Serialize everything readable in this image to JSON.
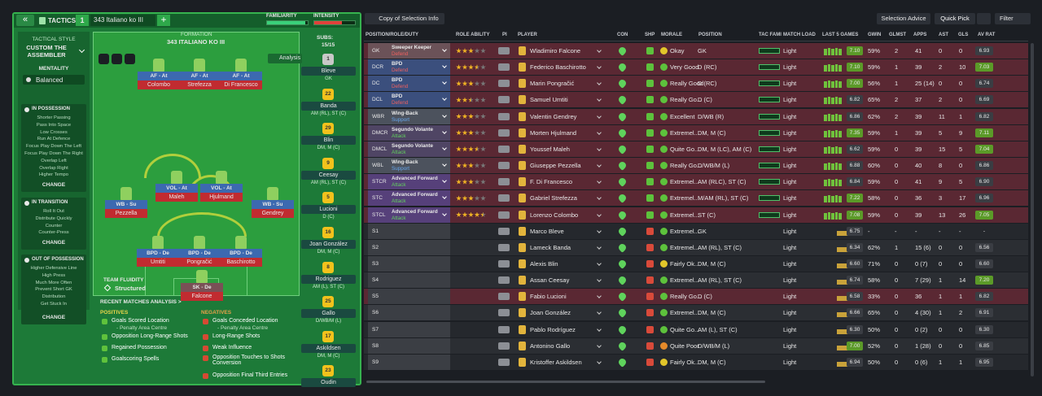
{
  "header": {
    "tactics_label": "TACTICS",
    "slot": "1",
    "tactic_name": "343 Italiano ko III",
    "familiarity_label": "FAMILIARITY",
    "familiarity_level": 93,
    "intensity_label": "INTENSITY",
    "intensity_level": 68
  },
  "sidebar": {
    "style_label": "TACTICAL STYLE",
    "style": "CUSTOM THE ASSEMBLER",
    "mentality_label": "MENTALITY",
    "mentality": "Balanced",
    "sections": [
      {
        "title": "IN POSSESSION",
        "items": [
          "Shorter Passing",
          "Pass Into Space",
          "Low Crosses",
          "Run At Defence",
          "Focus Play Down The Left",
          "Focus Play Down The Right",
          "Overlap Left",
          "Overlap Right",
          "Higher Tempo"
        ],
        "button": "CHANGE"
      },
      {
        "title": "IN TRANSITION",
        "items": [
          "Roll It Out",
          "Distribute Quickly",
          "Counter",
          "Counter-Press"
        ],
        "button": "CHANGE"
      },
      {
        "title": "OUT OF POSSESSION",
        "items": [
          "Higher Defensive Line",
          "High Press",
          "Much More Often",
          "Prevent Short GK",
          "Distribution",
          "Get Stuck In"
        ],
        "button": "CHANGE"
      }
    ]
  },
  "formation": {
    "label": "FORMATION",
    "name": "343 ITALIANO KO III",
    "subs_label": "SUBS:",
    "subs": "15/15",
    "analysis": "Analysis",
    "fluidity_label": "TEAM FLUIDITY",
    "fluidity": "Structured",
    "players": [
      {
        "role": "AF - At",
        "name": "Colombo"
      },
      {
        "role": "AF - At",
        "name": "Strefezza"
      },
      {
        "role": "AF - At",
        "name": "Di Francesco"
      },
      {
        "role": "WB - Su",
        "name": "Pezzella"
      },
      {
        "role": "VOL - At",
        "name": "Maleh"
      },
      {
        "role": "VOL - At",
        "name": "Hjulmand"
      },
      {
        "role": "WB - Su",
        "name": "Gendrey"
      },
      {
        "role": "BPD - De",
        "name": "Umtiti"
      },
      {
        "role": "BPD - De",
        "name": "Pongračić"
      },
      {
        "role": "BPD - De",
        "name": "Baschirotto"
      },
      {
        "role": "SK - De",
        "name": "Falcone"
      }
    ],
    "subs_list": [
      {
        "number": "1",
        "name": "Bleve",
        "position": "GK"
      },
      {
        "number": "22",
        "name": "Banda",
        "position": "AM (RL), ST (C)"
      },
      {
        "number": "29",
        "name": "Blin",
        "position": "DM, M (C)"
      },
      {
        "number": "9",
        "name": "Ceesay",
        "position": "AM (RL), ST (C)"
      },
      {
        "number": "5",
        "name": "Lucioni",
        "position": "D (C)"
      },
      {
        "number": "16",
        "name": "Joan González",
        "position": "DM, M (C)"
      },
      {
        "number": "8",
        "name": "Rodriguez",
        "position": "AM (L), ST (C)"
      },
      {
        "number": "25",
        "name": "Gallo",
        "position": "D/WB/M (L)"
      },
      {
        "number": "17",
        "name": "Askildsen",
        "position": "DM, M (C)"
      },
      {
        "number": "23",
        "name": "Oudin"
      }
    ]
  },
  "analysis": {
    "title": "RECENT MATCHES ANALYSIS >",
    "positives_label": "POSITIVES",
    "positives": [
      "Goals Scored Location",
      "- Penalty Area Centre",
      "Opposition Long-Range Shots",
      "Regained Possession",
      "Goalscoring Spells"
    ],
    "negatives_label": "NEGATIVES",
    "negatives": [
      "Goals Conceded Location",
      "- Penalty Area Centre",
      "Long-Range Shots",
      "Weak Influence",
      "Opposition Touches to Shots Conversion",
      "Opposition Final Third Entries"
    ]
  },
  "toolbar": {
    "view": "Copy of Selection Info",
    "advice": "Selection Advice",
    "quick_pick": "Quick Pick",
    "filter": "Filter"
  },
  "table": {
    "columns": [
      "POSITION/ROLE/DUTY",
      "ROLE ABILITY",
      "PI",
      "PLAYER",
      "CON",
      "SHP",
      "MORALE",
      "POSITION",
      "TAC FAMI",
      "MATCH LOAD",
      "LAST 5 GAMES",
      "GWIN",
      "GLMST",
      "APPS",
      "AST",
      "GLS",
      "AV RAT"
    ],
    "rows": [
      {
        "code": "GK",
        "role": "Sweeper Keeper",
        "duty": "Defend",
        "ability": 3,
        "player": "Wladimiro Falcone",
        "morale": "Okay",
        "position": "GK",
        "load": "Light",
        "last5": "7.10",
        "gwin": "59%",
        "glmst": "2",
        "apps": "41",
        "ast": "0",
        "gls": "0",
        "avrat": "6.93"
      },
      {
        "code": "DCR",
        "role": "BPD",
        "duty": "Defend",
        "ability": 3.5,
        "player": "Federico Baschirotto",
        "morale": "Very Good",
        "position": "D (RC)",
        "load": "Light",
        "last5": "7.10",
        "gwin": "59%",
        "glmst": "1",
        "apps": "39",
        "ast": "2",
        "gls": "10",
        "avrat": "7.03"
      },
      {
        "code": "DC",
        "role": "BPD",
        "duty": "Defend",
        "ability": 3,
        "player": "Marin Pongračić",
        "morale": "Really Good",
        "position": "D (RC)",
        "load": "Light",
        "last5": "7.00",
        "gwin": "56%",
        "glmst": "1",
        "apps": "25 (14)",
        "ast": "0",
        "gls": "0",
        "avrat": "6.74"
      },
      {
        "code": "DCL",
        "role": "BPD",
        "duty": "Defend",
        "ability": 2.5,
        "player": "Samuel Umtiti",
        "morale": "Really Go...",
        "position": "D (C)",
        "load": "Light",
        "last5": "6.82",
        "gwin": "65%",
        "glmst": "2",
        "apps": "37",
        "ast": "2",
        "gls": "0",
        "avrat": "6.69"
      },
      {
        "code": "WBR",
        "role": "Wing-Back",
        "duty": "Support",
        "ability": 3,
        "player": "Valentin Gendrey",
        "morale": "Excellent",
        "position": "D/WB (R)",
        "load": "Light",
        "last5": "6.86",
        "gwin": "62%",
        "glmst": "2",
        "apps": "39",
        "ast": "11",
        "gls": "1",
        "avrat": "6.82"
      },
      {
        "code": "DMCR",
        "role": "Segundo Volante",
        "duty": "Attack",
        "ability": 3,
        "player": "Morten Hjulmand",
        "morale": "Extremel...",
        "position": "DM, M (C)",
        "load": "Light",
        "last5": "7.35",
        "gwin": "59%",
        "glmst": "1",
        "apps": "39",
        "ast": "5",
        "gls": "9",
        "avrat": "7.11"
      },
      {
        "code": "DMCL",
        "role": "Segundo Volante",
        "duty": "Attack",
        "ability": 3.5,
        "player": "Youssef Maleh",
        "morale": "Quite Go...",
        "position": "DM, M (LC), AM (C)",
        "load": "Light",
        "last5": "6.62",
        "gwin": "59%",
        "glmst": "0",
        "apps": "39",
        "ast": "15",
        "gls": "5",
        "avrat": "7.04"
      },
      {
        "code": "WBL",
        "role": "Wing-Back",
        "duty": "Support",
        "ability": 3,
        "player": "Giuseppe Pezzella",
        "morale": "Really Go...",
        "position": "D/WB/M (L)",
        "load": "Light",
        "last5": "6.88",
        "gwin": "60%",
        "glmst": "0",
        "apps": "40",
        "ast": "8",
        "gls": "0",
        "avrat": "6.86"
      },
      {
        "code": "STCR",
        "role": "Advanced Forward",
        "duty": "Attack",
        "ability": 3,
        "player": "F. Di Francesco",
        "morale": "Extremel...",
        "position": "AM (RLC), ST (C)",
        "load": "Light",
        "last5": "6.84",
        "gwin": "59%",
        "glmst": "0",
        "apps": "41",
        "ast": "9",
        "gls": "5",
        "avrat": "6.90"
      },
      {
        "code": "STC",
        "role": "Advanced Forward",
        "duty": "Attack",
        "ability": 3,
        "player": "Gabriel Strefezza",
        "morale": "Extremel...",
        "position": "M/AM (RL), ST (C)",
        "load": "Light",
        "last5": "7.22",
        "gwin": "58%",
        "glmst": "0",
        "apps": "36",
        "ast": "3",
        "gls": "17",
        "avrat": "6.96"
      },
      {
        "code": "STCL",
        "role": "Advanced Forward",
        "duty": "Attack",
        "ability": 4.5,
        "player": "Lorenzo Colombo",
        "morale": "Extremel...",
        "position": "ST (C)",
        "load": "Light",
        "last5": "7.08",
        "gwin": "59%",
        "glmst": "0",
        "apps": "39",
        "ast": "13",
        "gls": "26",
        "avrat": "7.05"
      },
      {
        "code": "S1",
        "player": "Marco Bleve",
        "morale": "Extremel...",
        "position": "GK",
        "load": "Light",
        "last5": "6.75",
        "gwin": "-",
        "glmst": "-",
        "apps": "-",
        "ast": "-",
        "gls": "-",
        "avrat": "-"
      },
      {
        "code": "S2",
        "player": "Lameck Banda",
        "morale": "Extremel...",
        "position": "AM (RL), ST (C)",
        "load": "Light",
        "last5": "6.34",
        "gwin": "62%",
        "glmst": "1",
        "apps": "15 (6)",
        "ast": "0",
        "gls": "0",
        "avrat": "6.56"
      },
      {
        "code": "S3",
        "player": "Alexis Blin",
        "morale": "Fairly Ok...",
        "position": "DM, M (C)",
        "load": "Light",
        "last5": "6.60",
        "gwin": "71%",
        "glmst": "0",
        "apps": "0 (7)",
        "ast": "0",
        "gls": "0",
        "avrat": "6.60"
      },
      {
        "code": "S4",
        "player": "Assan Ceesay",
        "morale": "Extremel...",
        "position": "AM (RL), ST (C)",
        "load": "Light",
        "last5": "6.74",
        "gwin": "58%",
        "glmst": "0",
        "apps": "7 (29)",
        "ast": "1",
        "gls": "14",
        "avrat": "7.20"
      },
      {
        "code": "S5",
        "player": "Fabio Lucioni",
        "morale": "Really Go...",
        "position": "D (C)",
        "load": "Light",
        "last5": "6.58",
        "gwin": "33%",
        "glmst": "0",
        "apps": "36",
        "ast": "1",
        "gls": "1",
        "avrat": "6.82"
      },
      {
        "code": "S6",
        "player": "Joan González",
        "morale": "Extremel...",
        "position": "DM, M (C)",
        "load": "Light",
        "last5": "6.66",
        "gwin": "65%",
        "glmst": "0",
        "apps": "4 (30)",
        "ast": "1",
        "gls": "2",
        "avrat": "6.91"
      },
      {
        "code": "S7",
        "player": "Pablo Rodríguez",
        "morale": "Quite Go...",
        "position": "AM (L), ST (C)",
        "load": "Light",
        "last5": "6.30",
        "gwin": "50%",
        "glmst": "0",
        "apps": "0 (2)",
        "ast": "0",
        "gls": "0",
        "avrat": "6.30"
      },
      {
        "code": "S8",
        "player": "Antonino Gallo",
        "morale": "Quite Poor",
        "position": "D/WB/M (L)",
        "load": "Light",
        "last5": "7.00",
        "gwin": "52%",
        "glmst": "0",
        "apps": "1 (28)",
        "ast": "0",
        "gls": "0",
        "avrat": "6.85"
      },
      {
        "code": "S9",
        "player": "Kristoffer Askildsen",
        "morale": "Fairly Ok...",
        "position": "DM, M (C)",
        "load": "Light",
        "last5": "6.94",
        "gwin": "50%",
        "glmst": "0",
        "apps": "0 (6)",
        "ast": "1",
        "gls": "1",
        "avrat": "6.95"
      }
    ]
  }
}
